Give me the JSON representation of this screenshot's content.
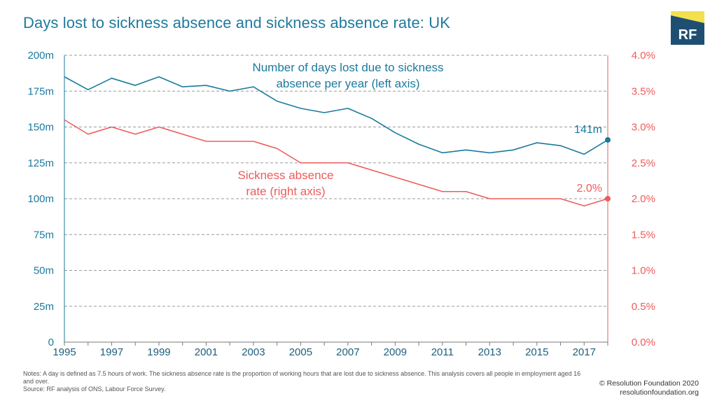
{
  "page": {
    "title": "Days lost to sickness absence and sickness absence rate: UK",
    "logo_text": "RF",
    "notes_line1": "Notes: A day is defined as 7.5 hours of work. The sickness absence rate is the proportion of working hours that are lost due to sickness absence. This analysis covers all people in employment aged 16 and over.",
    "notes_line2": "Source: RF analysis of ONS, Labour Force Survey.",
    "credit_line1": "© Resolution Foundation 2020",
    "credit_line2": "resolutionfoundation.org"
  },
  "colors": {
    "days_series": "#1b7a9e",
    "rate_series": "#ef5b5b",
    "logo_bg": "#1e4f73",
    "logo_accent": "#f2e14c",
    "grid": "#9a9a9a"
  },
  "chart_data": {
    "type": "line",
    "title": "Days lost to sickness absence and sickness absence rate: UK",
    "x": [
      1995,
      1996,
      1997,
      1998,
      1999,
      2000,
      2001,
      2002,
      2003,
      2004,
      2005,
      2006,
      2007,
      2008,
      2009,
      2010,
      2011,
      2012,
      2013,
      2014,
      2015,
      2016,
      2017,
      2018
    ],
    "x_ticks": [
      "1995",
      "1997",
      "1999",
      "2001",
      "2003",
      "2005",
      "2007",
      "2009",
      "2011",
      "2013",
      "2015",
      "2017"
    ],
    "left_axis": {
      "ylim": [
        0,
        200
      ],
      "ticks": [
        "0",
        "25m",
        "50m",
        "75m",
        "100m",
        "125m",
        "150m",
        "175m",
        "200m"
      ]
    },
    "right_axis": {
      "ylim": [
        0,
        4.0
      ],
      "ticks": [
        "0.0%",
        "0.5%",
        "1.0%",
        "1.5%",
        "2.0%",
        "2.5%",
        "3.0%",
        "3.5%",
        "4.0%"
      ]
    },
    "grid": "horizontal-dashed",
    "series": [
      {
        "name": "Number of days lost due to sickness absence per year (left axis)",
        "label_line1": "Number of days lost due to sickness",
        "label_line2": "absence per year (left axis)",
        "axis": "left",
        "values": [
          185,
          176,
          184,
          179,
          185,
          178,
          179,
          175,
          178,
          168,
          163,
          160,
          163,
          156,
          146,
          138,
          132,
          134,
          132,
          134,
          139,
          137,
          131,
          141
        ],
        "end_label": "141m"
      },
      {
        "name": "Sickness absence rate (right axis)",
        "label_line1": "Sickness absence",
        "label_line2": "rate (right axis)",
        "axis": "right",
        "values": [
          3.1,
          2.9,
          3.0,
          2.9,
          3.0,
          2.9,
          2.8,
          2.8,
          2.8,
          2.7,
          2.5,
          2.5,
          2.5,
          2.4,
          2.3,
          2.2,
          2.1,
          2.1,
          2.0,
          2.0,
          2.0,
          2.0,
          1.9,
          2.0
        ],
        "end_label": "2.0%"
      }
    ]
  }
}
